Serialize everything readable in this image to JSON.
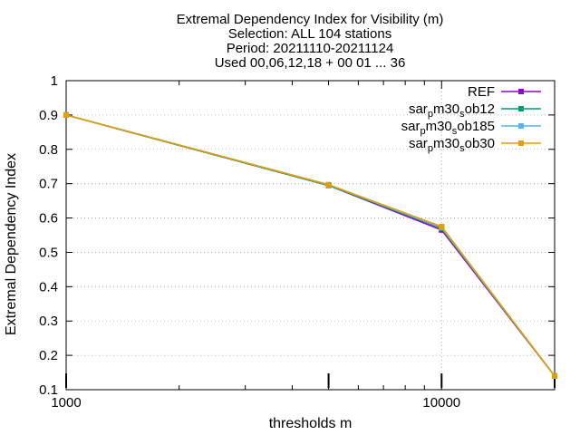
{
  "chart_data": {
    "type": "line",
    "title_lines": [
      "Extremal Dependency Index  for Visibility (m)",
      "Selection: ALL    104 stations",
      "Period: 20211110-20211124",
      "Used 00,06,12,18 + 00 01 ... 36"
    ],
    "xlabel": "thresholds m",
    "ylabel": "Extremal Dependency Index",
    "x_scale": "log",
    "xlim": [
      1000,
      20000
    ],
    "ylim": [
      0.1,
      1.0
    ],
    "x_tick_labels": [
      {
        "value": 1000,
        "label": "1000"
      },
      {
        "value": 10000,
        "label": "10000"
      }
    ],
    "y_ticks": [
      {
        "value": 0.1,
        "label": "0.1"
      },
      {
        "value": 0.2,
        "label": "0.2"
      },
      {
        "value": 0.3,
        "label": "0.3"
      },
      {
        "value": 0.4,
        "label": "0.4"
      },
      {
        "value": 0.5,
        "label": "0.5"
      },
      {
        "value": 0.6,
        "label": "0.6"
      },
      {
        "value": 0.7,
        "label": "0.7"
      },
      {
        "value": 0.8,
        "label": "0.8"
      },
      {
        "value": 0.9,
        "label": "0.9"
      },
      {
        "value": 1.0,
        "label": "1"
      }
    ],
    "grid": true,
    "legend_position": "top-right",
    "sample_markers_x": [
      1000,
      5000,
      10000,
      20000
    ],
    "series": [
      {
        "name": "REF",
        "legend": {
          "base": "REF",
          "parts": []
        },
        "color": "#9400d3",
        "x": [
          1000,
          5000,
          10000,
          20000
        ],
        "y": [
          0.9,
          0.695,
          0.565,
          0.14
        ]
      },
      {
        "name": "sar_pm30_sob12",
        "legend": {
          "base": "sar",
          "parts": [
            [
              "p",
              "sub"
            ],
            [
              "m30",
              "base"
            ],
            [
              "s",
              "sub"
            ],
            [
              "ob12",
              "base"
            ]
          ]
        },
        "color": "#009e73",
        "x": [
          1000,
          5000,
          10000,
          20000
        ],
        "y": [
          0.9,
          0.695,
          0.57,
          0.14
        ]
      },
      {
        "name": "sar_pm30_sob185",
        "legend": {
          "base": "sar",
          "parts": [
            [
              "p",
              "sub"
            ],
            [
              "m30",
              "base"
            ],
            [
              "s",
              "sub"
            ],
            [
              "ob185",
              "base"
            ]
          ]
        },
        "color": "#56b4e9",
        "x": [
          1000,
          5000,
          10000,
          20000
        ],
        "y": [
          0.9,
          0.697,
          0.572,
          0.14
        ]
      },
      {
        "name": "sar_pm30_sob30",
        "legend": {
          "base": "sar",
          "parts": [
            [
              "p",
              "sub"
            ],
            [
              "m30",
              "base"
            ],
            [
              "s",
              "sub"
            ],
            [
              "ob30",
              "base"
            ]
          ]
        },
        "color": "#e69f00",
        "x": [
          1000,
          5000,
          10000,
          20000
        ],
        "y": [
          0.9,
          0.697,
          0.575,
          0.14
        ]
      }
    ]
  }
}
